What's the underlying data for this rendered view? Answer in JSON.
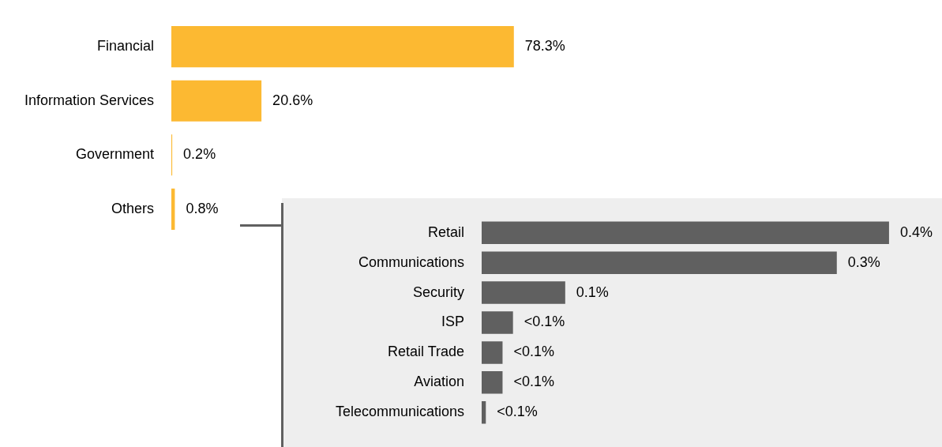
{
  "chart_data": [
    {
      "type": "bar",
      "orientation": "horizontal",
      "categories": [
        "Financial",
        "Information Services",
        "Government",
        "Others"
      ],
      "values": [
        78.3,
        20.6,
        0.2,
        0.8
      ],
      "value_labels": [
        "78.3%",
        "20.6%",
        "0.2%",
        "0.8%"
      ],
      "color": "#fcb932"
    },
    {
      "type": "bar",
      "orientation": "horizontal",
      "categories": [
        "Retail",
        "Communications",
        "Security",
        "ISP",
        "Retail Trade",
        "Aviation",
        "Telecommunications"
      ],
      "values": [
        0.39,
        0.34,
        0.08,
        0.03,
        0.02,
        0.02,
        0.004
      ],
      "value_labels": [
        "0.4%",
        "0.3%",
        "0.1%",
        "<0.1%",
        "<0.1%",
        "<0.1%",
        "<0.1%"
      ],
      "color": "#606060"
    }
  ]
}
